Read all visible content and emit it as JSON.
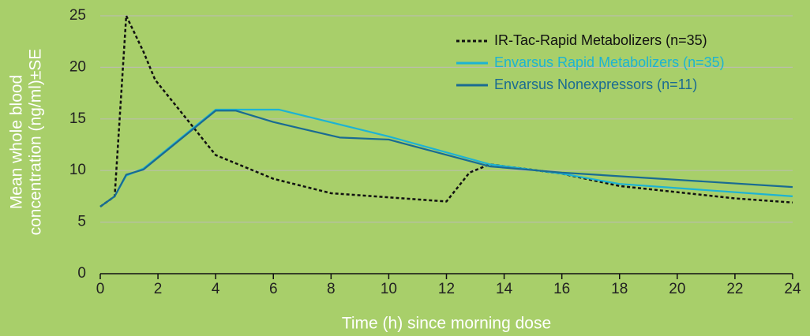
{
  "chart_data": {
    "type": "line",
    "xlabel": "Time (h) since morning dose",
    "ylabel": [
      "Mean whole blood",
      "concentration (ng/ml)±SE"
    ],
    "xlim": [
      0,
      24
    ],
    "xticks": [
      0,
      2,
      4,
      6,
      8,
      10,
      12,
      14,
      16,
      18,
      20,
      22,
      24
    ],
    "ylim": [
      0,
      25
    ],
    "yticks": [
      0,
      5,
      10,
      15,
      20,
      25
    ],
    "grid": true,
    "legend": "upper right",
    "series": [
      {
        "name": "IR-Tac-Rapid Metabolizers (n=35)",
        "color": "#111111",
        "dash": "dotted",
        "x": [
          0,
          0.5,
          0.9,
          1.5,
          1.9,
          4,
          6,
          8,
          10,
          12,
          12.8,
          13.5,
          16,
          18,
          20,
          22,
          24
        ],
        "values": [
          6.5,
          7.5,
          25,
          21.5,
          18.8,
          11.5,
          9.2,
          7.8,
          7.4,
          7,
          9.8,
          10.6,
          9.7,
          8.5,
          7.9,
          7.3,
          6.9
        ]
      },
      {
        "name": "Envarsus Rapid Metabolizers (n=35)",
        "color": "#1db3d3",
        "dash": "solid",
        "x": [
          0,
          0.5,
          0.9,
          1.5,
          4,
          6.2,
          10,
          13.5,
          16,
          18,
          24
        ],
        "values": [
          6.5,
          7.5,
          9.5,
          10.2,
          15.9,
          15.9,
          13.3,
          10.6,
          9.7,
          8.7,
          7.5
        ]
      },
      {
        "name": "Envarsus Nonexpressors (n=11)",
        "color": "#1a6b92",
        "dash": "solid",
        "x": [
          0,
          0.5,
          0.9,
          1.5,
          4,
          4.7,
          6,
          8.3,
          10,
          13.5,
          16,
          24
        ],
        "values": [
          6.5,
          7.5,
          9.6,
          10.1,
          15.8,
          15.8,
          14.7,
          13.2,
          13,
          10.4,
          9.8,
          8.4
        ]
      }
    ]
  }
}
